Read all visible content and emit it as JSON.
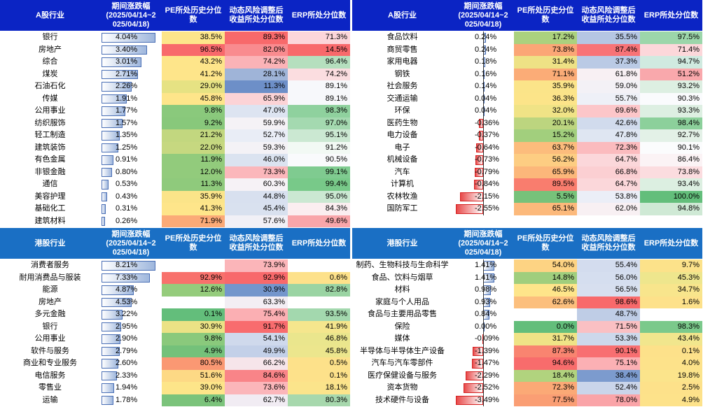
{
  "colors": {
    "header_bg": "#0b24c4",
    "header_bg_hk": "#1a6fc4"
  },
  "headers": {
    "a_industry": "A股行业",
    "hk_industry": "港股行业",
    "change": "期间涨跌幅\n(2025/04/14~2\n025/04/18)",
    "pe": "PE所处历史分位\n数",
    "risk": "动态风险调整后\n收益所处分位数",
    "erp": "ERP所处分位数"
  },
  "panels": [
    {
      "id": "a-left",
      "max_abs": 4.1,
      "rows": [
        {
          "name": "银行",
          "chg": "4.04%",
          "v": 4.04,
          "pe": "38.5%",
          "pe_c": "#fde58a",
          "risk": "89.3%",
          "risk_c": "#f8696b",
          "erp": "71.3%",
          "erp_c": "#fcd6da"
        },
        {
          "name": "房地产",
          "chg": "3.40%",
          "v": 3.4,
          "pe": "96.5%",
          "pe_c": "#f8696b",
          "risk": "82.0%",
          "risk_c": "#f98b8f",
          "erp": "14.5%",
          "erp_c": "#f8696b"
        },
        {
          "name": "综合",
          "chg": "3.01%",
          "v": 3.01,
          "pe": "43.2%",
          "pe_c": "#fee58a",
          "risk": "74.2%",
          "risk_c": "#fbb3b7",
          "erp": "96.4%",
          "erp_c": "#b5dfbe"
        },
        {
          "name": "煤炭",
          "chg": "2.71%",
          "v": 2.71,
          "pe": "41.2%",
          "pe_c": "#fee58a",
          "risk": "28.1%",
          "risk_c": "#9fb4d8",
          "erp": "74.2%",
          "erp_c": "#fbdde0"
        },
        {
          "name": "石油石化",
          "chg": "2.26%",
          "v": 2.26,
          "pe": "29.0%",
          "pe_c": "#e6e283",
          "risk": "11.3%",
          "risk_c": "#6d8fc8",
          "erp": "89.1%",
          "erp_c": "#f7f8fb"
        },
        {
          "name": "传媒",
          "chg": "1.91%",
          "v": 1.91,
          "pe": "45.8%",
          "pe_c": "#fee58a",
          "risk": "65.9%",
          "risk_c": "#fcd3d6",
          "erp": "89.1%",
          "erp_c": "#f7f8fb"
        },
        {
          "name": "公用事业",
          "chg": "1.77%",
          "v": 1.77,
          "pe": "9.8%",
          "pe_c": "#8ac97c",
          "risk": "47.0%",
          "risk_c": "#dde4f1",
          "erp": "98.3%",
          "erp_c": "#8fd19e"
        },
        {
          "name": "纺织服饰",
          "chg": "1.57%",
          "v": 1.57,
          "pe": "9.2%",
          "pe_c": "#88c87b",
          "risk": "59.9%",
          "risk_c": "#f5f2f6",
          "erp": "97.0%",
          "erp_c": "#a4d9b0"
        },
        {
          "name": "轻工制造",
          "chg": "1.35%",
          "v": 1.35,
          "pe": "21.2%",
          "pe_c": "#c2d77f",
          "risk": "52.7%",
          "risk_c": "#e9edf6",
          "erp": "95.1%",
          "erp_c": "#cbe8d2"
        },
        {
          "name": "建筑装饰",
          "chg": "1.25%",
          "v": 1.25,
          "pe": "22.0%",
          "pe_c": "#c6d880",
          "risk": "59.3%",
          "risk_c": "#f4f2f6",
          "erp": "91.2%",
          "erp_c": "#f2f9f4"
        },
        {
          "name": "有色金属",
          "chg": "0.91%",
          "v": 0.91,
          "pe": "11.9%",
          "pe_c": "#92cb7c",
          "risk": "46.0%",
          "risk_c": "#dbe3f0",
          "erp": "90.5%",
          "erp_c": "#f9fafc"
        },
        {
          "name": "非银金融",
          "chg": "0.80%",
          "v": 0.8,
          "pe": "12.0%",
          "pe_c": "#92cb7c",
          "risk": "73.3%",
          "risk_c": "#fbb7bb",
          "erp": "99.1%",
          "erp_c": "#7fcb90"
        },
        {
          "name": "通信",
          "chg": "0.53%",
          "v": 0.53,
          "pe": "11.3%",
          "pe_c": "#8fca7c",
          "risk": "60.3%",
          "risk_c": "#f6f2f6",
          "erp": "99.4%",
          "erp_c": "#78c989"
        },
        {
          "name": "美容护理",
          "chg": "0.43%",
          "v": 0.43,
          "pe": "35.9%",
          "pe_c": "#fbe489",
          "risk": "44.8%",
          "risk_c": "#d8e0ef",
          "erp": "95.0%",
          "erp_c": "#cbe8d2"
        },
        {
          "name": "基础化工",
          "chg": "0.31%",
          "v": 0.31,
          "pe": "41.3%",
          "pe_c": "#fee58a",
          "risk": "45.4%",
          "risk_c": "#d9e1ef",
          "erp": "84.3%",
          "erp_c": "#fbeef0"
        },
        {
          "name": "建筑材料",
          "chg": "0.26%",
          "v": 0.26,
          "pe": "71.9%",
          "pe_c": "#fbaa77",
          "risk": "57.6%",
          "risk_c": "#f1f0f6",
          "erp": "49.6%",
          "erp_c": "#f9a6aa"
        }
      ]
    },
    {
      "id": "a-right",
      "max_abs": 2.6,
      "rows": [
        {
          "name": "食品饮料",
          "chg": "0.24%",
          "v": 0.24,
          "pe": "17.2%",
          "pe_c": "#abd17e",
          "risk": "35.5%",
          "risk_c": "#b5c6e3",
          "erp": "97.5%",
          "erp_c": "#9cd6aa"
        },
        {
          "name": "商贸零售",
          "chg": "0.24%",
          "v": 0.24,
          "pe": "73.8%",
          "pe_c": "#fba676",
          "risk": "87.4%",
          "risk_c": "#f87377",
          "erp": "71.4%",
          "erp_c": "#fcd7da"
        },
        {
          "name": "家用电器",
          "chg": "0.18%",
          "v": 0.18,
          "pe": "31.4%",
          "pe_c": "#eee285",
          "risk": "37.3%",
          "risk_c": "#bacae5",
          "erp": "94.7%",
          "erp_c": "#d0eae0"
        },
        {
          "name": "钢铁",
          "chg": "0.16%",
          "v": 0.16,
          "pe": "71.1%",
          "pe_c": "#fbac77",
          "risk": "61.8%",
          "risk_c": "#f8f0f3",
          "erp": "51.2%",
          "erp_c": "#f9a8ac"
        },
        {
          "name": "社会服务",
          "chg": "0.14%",
          "v": 0.14,
          "pe": "35.9%",
          "pe_c": "#fbe489",
          "risk": "59.0%",
          "risk_c": "#f3f1f6",
          "erp": "93.2%",
          "erp_c": "#ddefe2"
        },
        {
          "name": "交通运输",
          "chg": "0.04%",
          "v": 0.04,
          "pe": "36.3%",
          "pe_c": "#fce489",
          "risk": "55.7%",
          "risk_c": "#eef0f7",
          "erp": "90.3%",
          "erp_c": "#fafbfd"
        },
        {
          "name": "环保",
          "chg": "0.04%",
          "v": 0.04,
          "pe": "32.0%",
          "pe_c": "#f0e386",
          "risk": "69.6%",
          "risk_c": "#fcc6c9",
          "erp": "93.3%",
          "erp_c": "#ddefe2"
        },
        {
          "name": "医药生物",
          "chg": "-0.36%",
          "v": -0.36,
          "pe": "20.1%",
          "pe_c": "#bcd57f",
          "risk": "42.6%",
          "risk_c": "#d1dbed",
          "erp": "98.4%",
          "erp_c": "#8cd09b"
        },
        {
          "name": "电力设备",
          "chg": "-0.37%",
          "v": -0.37,
          "pe": "15.2%",
          "pe_c": "#a2cf7d",
          "risk": "47.8%",
          "risk_c": "#dfe6f2",
          "erp": "92.7%",
          "erp_c": "#e3f1e7"
        },
        {
          "name": "电子",
          "chg": "-0.64%",
          "v": -0.64,
          "pe": "63.7%",
          "pe_c": "#fcbc7c",
          "risk": "72.3%",
          "risk_c": "#fbbbbe",
          "erp": "90.1%",
          "erp_c": "#fbfcfd"
        },
        {
          "name": "机械设备",
          "chg": "-0.73%",
          "v": -0.73,
          "pe": "56.2%",
          "pe_c": "#fdcd82",
          "risk": "64.7%",
          "risk_c": "#fbd7da",
          "erp": "86.4%",
          "erp_c": "#fbf3f5"
        },
        {
          "name": "汽车",
          "chg": "-0.79%",
          "v": -0.79,
          "pe": "65.9%",
          "pe_c": "#fcb77a",
          "risk": "66.8%",
          "risk_c": "#fbcfd2",
          "erp": "73.8%",
          "erp_c": "#fbdcdf"
        },
        {
          "name": "计算机",
          "chg": "-0.84%",
          "v": -0.84,
          "pe": "89.5%",
          "pe_c": "#f97d6e",
          "risk": "64.7%",
          "risk_c": "#fbd7da",
          "erp": "93.4%",
          "erp_c": "#dcefe1"
        },
        {
          "name": "农林牧渔",
          "chg": "-2.15%",
          "v": -2.15,
          "pe": "5.5%",
          "pe_c": "#77c27a",
          "risk": "53.8%",
          "risk_c": "#ebeef7",
          "erp": "100.0%",
          "erp_c": "#63be7b"
        },
        {
          "name": "国防军工",
          "chg": "-2.55%",
          "v": -2.55,
          "pe": "65.1%",
          "pe_c": "#fcb97b",
          "risk": "62.0%",
          "risk_c": "#f8f0f3",
          "erp": "94.8%",
          "erp_c": "#cfe9d5"
        }
      ]
    },
    {
      "id": "hk-left",
      "max_abs": 8.3,
      "rows": [
        {
          "name": "消费者服务",
          "chg": "8.21%",
          "v": 8.21,
          "pe": "",
          "pe_c": "#ffffff",
          "risk": "73.9%",
          "risk_c": "#fbb5b9",
          "erp": "",
          "erp_c": "#ffffff"
        },
        {
          "name": "耐用消费品与服装",
          "chg": "7.33%",
          "v": 7.33,
          "pe": "92.9%",
          "pe_c": "#f8716c",
          "risk": "92.9%",
          "risk_c": "#f8696b",
          "erp": "0.6%",
          "erp_c": "#fde18a"
        },
        {
          "name": "能源",
          "chg": "4.87%",
          "v": 4.87,
          "pe": "12.6%",
          "pe_c": "#95cc7c",
          "risk": "30.9%",
          "risk_c": "#7496cc",
          "erp": "82.8%",
          "erp_c": "#9ad4a3"
        },
        {
          "name": "房地产",
          "chg": "4.53%",
          "v": 4.53,
          "pe": "",
          "pe_c": "#ffffff",
          "risk": "63.3%",
          "risk_c": "#f3eef4",
          "erp": "",
          "erp_c": "#ffffff"
        },
        {
          "name": "多元金融",
          "chg": "3.22%",
          "v": 3.22,
          "pe": "0.1%",
          "pe_c": "#63be7b",
          "risk": "75.4%",
          "risk_c": "#fbafb3",
          "erp": "93.5%",
          "erp_c": "#a3d8ae"
        },
        {
          "name": "银行",
          "chg": "2.95%",
          "v": 2.95,
          "pe": "30.9%",
          "pe_c": "#ebe285",
          "risk": "91.7%",
          "risk_c": "#f86c6e",
          "erp": "41.9%",
          "erp_c": "#f5e68d"
        },
        {
          "name": "公用事业",
          "chg": "2.90%",
          "v": 2.9,
          "pe": "9.8%",
          "pe_c": "#8ac97c",
          "risk": "54.1%",
          "risk_c": "#cfd9ec",
          "erp": "46.8%",
          "erp_c": "#eae68d"
        },
        {
          "name": "软件与服务",
          "chg": "2.79%",
          "v": 2.79,
          "pe": "4.9%",
          "pe_c": "#74c17a",
          "risk": "49.9%",
          "risk_c": "#c3d0e8",
          "erp": "45.8%",
          "erp_c": "#ece68d"
        },
        {
          "name": "商业和专业服务",
          "chg": "2.60%",
          "v": 2.6,
          "pe": "80.5%",
          "pe_c": "#fa9873",
          "risk": "66.2%",
          "risk_c": "#f6e5ea",
          "erp": "0.5%",
          "erp_c": "#fde18a"
        },
        {
          "name": "电信服务",
          "chg": "2.33%",
          "v": 2.33,
          "pe": "51.6%",
          "pe_c": "#fdd985",
          "risk": "84.6%",
          "risk_c": "#f98488",
          "erp": "0.1%",
          "erp_c": "#fde18a"
        },
        {
          "name": "零售业",
          "chg": "1.94%",
          "v": 1.94,
          "pe": "39.0%",
          "pe_c": "#fde589",
          "risk": "73.6%",
          "risk_c": "#fbb6ba",
          "erp": "18.1%",
          "erp_c": "#fbe48b"
        },
        {
          "name": "运输",
          "chg": "1.78%",
          "v": 1.78,
          "pe": "6.4%",
          "pe_c": "#7bc37b",
          "risk": "62.7%",
          "risk_c": "#f1ecf3",
          "erp": "80.3%",
          "erp_c": "#a7d8ad"
        }
      ]
    },
    {
      "id": "hk-right",
      "max_abs": 3.6,
      "rows": [
        {
          "name": "制药、生物科技与生命科学",
          "chg": "1.41%",
          "v": 1.41,
          "pe": "54.0%",
          "pe_c": "#fdd383",
          "risk": "55.4%",
          "risk_c": "#d3dcee",
          "erp": "9.7%",
          "erp_c": "#fce28a"
        },
        {
          "name": "食品、饮料与烟草",
          "chg": "1.41%",
          "v": 1.41,
          "pe": "14.8%",
          "pe_c": "#a0ce7d",
          "risk": "56.0%",
          "risk_c": "#d5deef",
          "erp": "45.3%",
          "erp_c": "#eee68d"
        },
        {
          "name": "材料",
          "chg": "0.98%",
          "v": 0.98,
          "pe": "46.5%",
          "pe_c": "#fee58a",
          "risk": "56.5%",
          "risk_c": "#d7dfef",
          "erp": "34.7%",
          "erp_c": "#f8e58c"
        },
        {
          "name": "家庭与个人用品",
          "chg": "0.93%",
          "v": 0.93,
          "pe": "62.6%",
          "pe_c": "#fcbf7d",
          "risk": "98.6%",
          "risk_c": "#f8696b",
          "erp": "1.6%",
          "erp_c": "#fde18a"
        },
        {
          "name": "食品与主要用品零售",
          "chg": "0.84%",
          "v": 0.84,
          "pe": "",
          "pe_c": "#ffffff",
          "risk": "48.7%",
          "risk_c": "#bfcde6",
          "erp": "",
          "erp_c": "#ffffff"
        },
        {
          "name": "保险",
          "chg": "0.00%",
          "v": 0.0,
          "pe": "0.0%",
          "pe_c": "#63be7b",
          "risk": "71.5%",
          "risk_c": "#fac0c3",
          "erp": "98.3%",
          "erp_c": "#7bc98b"
        },
        {
          "name": "媒体",
          "chg": "-0.09%",
          "v": -0.09,
          "pe": "31.7%",
          "pe_c": "#efe386",
          "risk": "53.3%",
          "risk_c": "#cdd8eb",
          "erp": "43.4%",
          "erp_c": "#f1e68d"
        },
        {
          "name": "半导体与半导体生产设备",
          "chg": "-1.39%",
          "v": -1.39,
          "pe": "87.3%",
          "pe_c": "#f98470",
          "risk": "90.1%",
          "risk_c": "#f86f71",
          "erp": "0.1%",
          "erp_c": "#fde18a"
        },
        {
          "name": "汽车与汽车零部件",
          "chg": "-1.47%",
          "v": -1.47,
          "pe": "94.6%",
          "pe_c": "#f86c6c",
          "risk": "75.1%",
          "risk_c": "#fbb0b4",
          "erp": "4.0%",
          "erp_c": "#fde28a"
        },
        {
          "name": "医疗保健设备与服务",
          "chg": "-2.29%",
          "v": -2.29,
          "pe": "18.4%",
          "pe_c": "#b1d37e",
          "risk": "38.4%",
          "risk_c": "#7c9bce",
          "erp": "19.8%",
          "erp_c": "#fbe48b"
        },
        {
          "name": "资本货物",
          "chg": "-2.52%",
          "v": -2.52,
          "pe": "72.3%",
          "pe_c": "#fba976",
          "risk": "52.4%",
          "risk_c": "#cad5ea",
          "erp": "2.5%",
          "erp_c": "#fde18a"
        },
        {
          "name": "技术硬件与设备",
          "chg": "-3.49%",
          "v": -3.49,
          "pe": "77.5%",
          "pe_c": "#fa9e74",
          "risk": "78.0%",
          "risk_c": "#faa4a8",
          "erp": "4.9%",
          "erp_c": "#fde28a"
        }
      ]
    }
  ]
}
